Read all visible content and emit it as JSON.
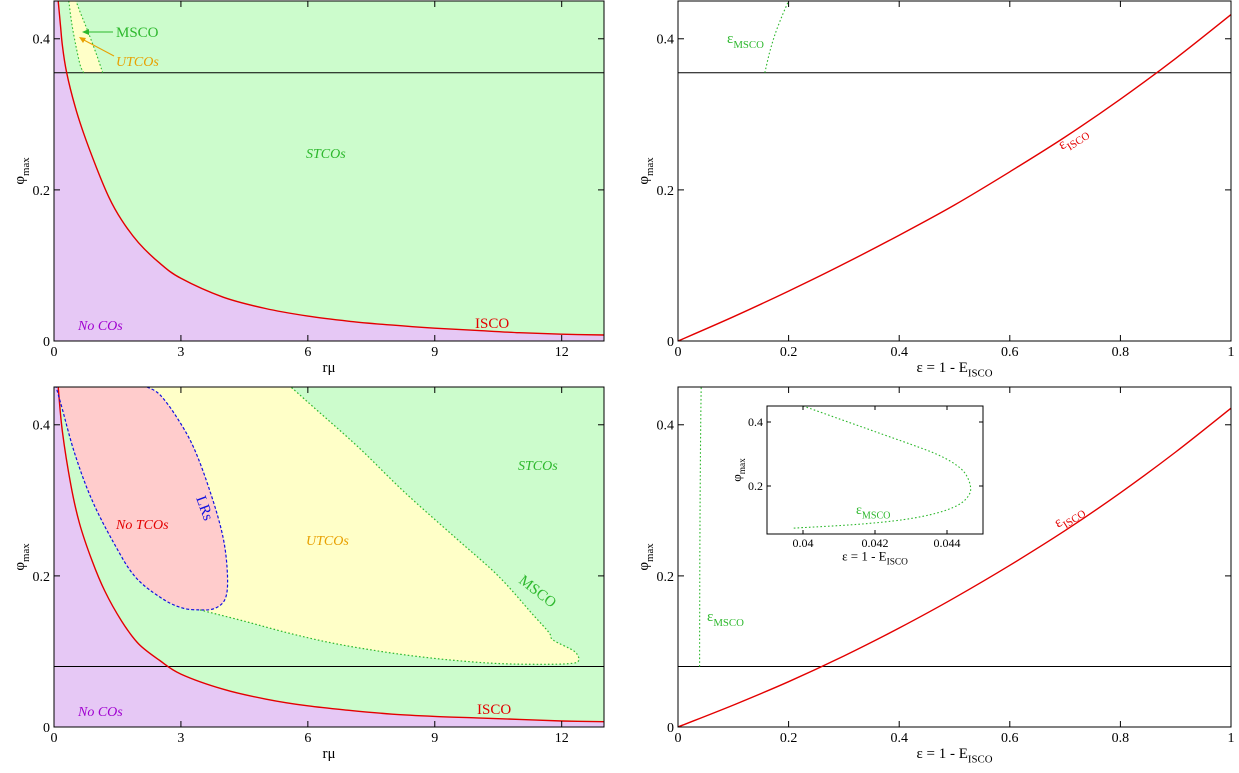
{
  "chart_data": [
    {
      "id": "top-left",
      "type": "area",
      "xlabel": "rμ",
      "ylabel": "φmax",
      "ylabel_main": "φ",
      "ylabel_sub": "max",
      "xlim": [
        0,
        13
      ],
      "ylim": [
        0,
        0.45
      ],
      "xticks": [
        0,
        3,
        6,
        9,
        12
      ],
      "yticks": [
        0,
        0.2,
        0.4
      ],
      "xtick_labels": [
        "0",
        "3",
        "6",
        "9",
        "12"
      ],
      "ytick_labels": [
        "0",
        "0.2",
        "0.4"
      ],
      "hline": 0.355,
      "regions": [
        {
          "label": "No COs",
          "color": "#e6c8f5"
        },
        {
          "label": "STCOs",
          "color": "#ccfccc"
        },
        {
          "label": "UTCOs",
          "color": "#ffffc8"
        }
      ],
      "curves": [
        {
          "name": "ISCO",
          "style": "solid",
          "color": "#e30000",
          "points": [
            [
              0.1,
              0.45
            ],
            [
              0.15,
              0.42
            ],
            [
              0.2,
              0.39
            ],
            [
              0.3,
              0.355
            ],
            [
              0.5,
              0.31
            ],
            [
              0.7,
              0.275
            ],
            [
              1.0,
              0.23
            ],
            [
              1.3,
              0.19
            ],
            [
              1.6,
              0.16
            ],
            [
              2.0,
              0.13
            ],
            [
              2.5,
              0.103
            ],
            [
              3.0,
              0.083
            ],
            [
              4.0,
              0.058
            ],
            [
              5.0,
              0.043
            ],
            [
              6.0,
              0.033
            ],
            [
              7.0,
              0.026
            ],
            [
              8.0,
              0.021
            ],
            [
              9.0,
              0.017
            ],
            [
              10.0,
              0.014
            ],
            [
              11.0,
              0.011
            ],
            [
              12.0,
              0.009
            ],
            [
              13.0,
              0.008
            ]
          ]
        },
        {
          "name": "MSCO",
          "style": "dotted",
          "color": "#2db82d",
          "points": [
            [
              1.15,
              0.355
            ],
            [
              1.0,
              0.38
            ],
            [
              0.8,
              0.41
            ],
            [
              0.62,
              0.435
            ],
            [
              0.52,
              0.45
            ]
          ]
        },
        {
          "name": "UTCO-left",
          "style": "dotted",
          "color": "#2db82d",
          "points": [
            [
              0.35,
              0.45
            ],
            [
              0.42,
              0.42
            ],
            [
              0.52,
              0.39
            ],
            [
              0.62,
              0.365
            ],
            [
              0.7,
              0.355
            ]
          ]
        }
      ],
      "labels": [
        "MSCO",
        "UTCOs",
        "STCOs",
        "No COs",
        "ISCO"
      ]
    },
    {
      "id": "top-right",
      "type": "line",
      "xlabel": "ε = 1 - EISCO",
      "xlabel_main": "ε = 1 - E",
      "xlabel_sub": "ISCO",
      "ylabel": "φmax",
      "ylabel_main": "φ",
      "ylabel_sub": "max",
      "xlim": [
        0,
        1
      ],
      "ylim": [
        0,
        0.45
      ],
      "xticks": [
        0,
        0.2,
        0.4,
        0.6,
        0.8,
        1
      ],
      "yticks": [
        0,
        0.2,
        0.4
      ],
      "xtick_labels": [
        "0",
        "0.2",
        "0.4",
        "0.6",
        "0.8",
        "1"
      ],
      "ytick_labels": [
        "0",
        "0.2",
        "0.4"
      ],
      "hline": 0.355,
      "series": [
        {
          "name": "εISCO",
          "label_main": "ε",
          "label_sub": "ISCO",
          "style": "solid",
          "color": "#e30000",
          "x": [
            0,
            0.1,
            0.2,
            0.3,
            0.4,
            0.5,
            0.6,
            0.7,
            0.8,
            0.9,
            1.0
          ],
          "y": [
            0,
            0.032,
            0.066,
            0.102,
            0.14,
            0.18,
            0.224,
            0.27,
            0.32,
            0.374,
            0.432
          ]
        },
        {
          "name": "εMSCO",
          "label_main": "ε",
          "label_sub": "MSCO",
          "style": "dotted",
          "color": "#2db82d",
          "x": [
            0.157,
            0.165,
            0.175,
            0.188,
            0.2
          ],
          "y": [
            0.355,
            0.38,
            0.405,
            0.43,
            0.45
          ]
        }
      ]
    },
    {
      "id": "bottom-left",
      "type": "area",
      "xlabel": "rμ",
      "ylabel": "φmax",
      "ylabel_main": "φ",
      "ylabel_sub": "max",
      "xlim": [
        0,
        13
      ],
      "ylim": [
        0,
        0.45
      ],
      "xticks": [
        0,
        3,
        6,
        9,
        12
      ],
      "yticks": [
        0,
        0.2,
        0.4
      ],
      "xtick_labels": [
        "0",
        "3",
        "6",
        "9",
        "12"
      ],
      "ytick_labels": [
        "0",
        "0.2",
        "0.4"
      ],
      "hline": 0.08,
      "regions": [
        {
          "label": "No COs",
          "color": "#e6c8f5"
        },
        {
          "label": "STCOs",
          "color": "#ccfccc"
        },
        {
          "label": "UTCOs",
          "color": "#ffffc8"
        },
        {
          "label": "No TCOs",
          "color": "#ffcccc"
        }
      ],
      "curves": [
        {
          "name": "ISCO",
          "style": "solid",
          "color": "#e30000",
          "points": [
            [
              0.1,
              0.45
            ],
            [
              0.2,
              0.39
            ],
            [
              0.4,
              0.32
            ],
            [
              0.6,
              0.27
            ],
            [
              0.9,
              0.22
            ],
            [
              1.2,
              0.18
            ],
            [
              1.6,
              0.14
            ],
            [
              2.0,
              0.11
            ],
            [
              2.5,
              0.088
            ],
            [
              3.0,
              0.07
            ],
            [
              4.0,
              0.05
            ],
            [
              5.0,
              0.037
            ],
            [
              6.0,
              0.028
            ],
            [
              7.0,
              0.022
            ],
            [
              8.0,
              0.017
            ],
            [
              9.0,
              0.014
            ],
            [
              10.0,
              0.012
            ],
            [
              11.0,
              0.01
            ],
            [
              12.0,
              0.008
            ],
            [
              13.0,
              0.007
            ]
          ]
        },
        {
          "name": "LRs",
          "style": "dashed",
          "color": "#1010e0",
          "points": [
            [
              2.2,
              0.45
            ],
            [
              2.5,
              0.44
            ],
            [
              2.9,
              0.41
            ],
            [
              3.3,
              0.37
            ],
            [
              3.7,
              0.31
            ],
            [
              4.0,
              0.25
            ],
            [
              4.1,
              0.2
            ],
            [
              4.05,
              0.17
            ],
            [
              3.8,
              0.157
            ],
            [
              3.45,
              0.155
            ],
            [
              3.0,
              0.158
            ],
            [
              2.5,
              0.172
            ],
            [
              1.9,
              0.2
            ],
            [
              1.4,
              0.245
            ],
            [
              0.9,
              0.3
            ],
            [
              0.5,
              0.36
            ],
            [
              0.2,
              0.42
            ],
            [
              0.05,
              0.45
            ]
          ]
        },
        {
          "name": "MSCO",
          "style": "dotted",
          "color": "#2db82d",
          "points": [
            [
              3.45,
              0.155
            ],
            [
              4.5,
              0.14
            ],
            [
              5.5,
              0.125
            ],
            [
              6.5,
              0.112
            ],
            [
              7.5,
              0.102
            ],
            [
              8.5,
              0.094
            ],
            [
              9.5,
              0.088
            ],
            [
              10.5,
              0.084
            ],
            [
              11.5,
              0.083
            ],
            [
              12.2,
              0.084
            ],
            [
              12.4,
              0.088
            ],
            [
              12.3,
              0.1
            ],
            [
              11.8,
              0.115
            ],
            [
              11.7,
              0.125
            ],
            [
              11.3,
              0.15
            ],
            [
              10.5,
              0.2
            ],
            [
              9.5,
              0.25
            ],
            [
              8.3,
              0.31
            ],
            [
              7.2,
              0.37
            ],
            [
              6.0,
              0.43
            ],
            [
              5.6,
              0.45
            ]
          ]
        }
      ],
      "labels": [
        "STCOs",
        "No TCOs",
        "LRs",
        "UTCOs",
        "MSCO",
        "No COs",
        "ISCO"
      ]
    },
    {
      "id": "bottom-right",
      "type": "line",
      "xlabel": "ε = 1 - EISCO",
      "xlabel_main": "ε = 1 - E",
      "xlabel_sub": "ISCO",
      "ylabel": "φmax",
      "ylabel_main": "φ",
      "ylabel_sub": "max",
      "xlim": [
        0,
        1
      ],
      "ylim": [
        0,
        0.45
      ],
      "xticks": [
        0,
        0.2,
        0.4,
        0.6,
        0.8,
        1
      ],
      "yticks": [
        0,
        0.2,
        0.4
      ],
      "xtick_labels": [
        "0",
        "0.2",
        "0.4",
        "0.6",
        "0.8",
        "1"
      ],
      "ytick_labels": [
        "0",
        "0.2",
        "0.4"
      ],
      "hline": 0.08,
      "series": [
        {
          "name": "εISCO",
          "label_main": "ε",
          "label_sub": "ISCO",
          "style": "solid",
          "color": "#e30000",
          "x": [
            0,
            0.1,
            0.2,
            0.3,
            0.4,
            0.5,
            0.6,
            0.7,
            0.8,
            0.9,
            1.0
          ],
          "y": [
            0,
            0.029,
            0.06,
            0.094,
            0.131,
            0.171,
            0.214,
            0.26,
            0.31,
            0.364,
            0.422
          ]
        },
        {
          "name": "εMSCO",
          "label_main": "ε",
          "label_sub": "MSCO",
          "style": "dotted",
          "color": "#2db82d",
          "x": [
            0.039,
            0.0392,
            0.0395,
            0.04,
            0.041,
            0.042
          ],
          "y": [
            0.08,
            0.15,
            0.22,
            0.3,
            0.4,
            0.45
          ]
        }
      ],
      "inset": {
        "xlabel": "ε = 1 - EISCO",
        "xlabel_main": "ε = 1 - E",
        "xlabel_sub": "ISCO",
        "ylabel": "φmax",
        "ylabel_main": "φ",
        "ylabel_sub": "max",
        "xlim": [
          0.039,
          0.045
        ],
        "ylim": [
          0.05,
          0.45
        ],
        "xticks": [
          0.04,
          0.042,
          0.044
        ],
        "yticks": [
          0.2,
          0.4
        ],
        "xtick_labels": [
          "0.04",
          "0.042",
          "0.044"
        ],
        "ytick_labels": [
          "0.2",
          "0.4"
        ],
        "series": [
          {
            "name": "εMSCO",
            "label_main": "ε",
            "label_sub": "MSCO",
            "style": "dotted",
            "color": "#2db82d",
            "x": [
              0.04,
              0.041,
              0.042,
              0.043,
              0.0437,
              0.0442,
              0.0445,
              0.04465,
              0.0446,
              0.0443,
              0.0437,
              0.0428,
              0.0415,
              0.04,
              0.0397
            ],
            "y": [
              0.45,
              0.41,
              0.37,
              0.33,
              0.3,
              0.27,
              0.24,
              0.2,
              0.17,
              0.14,
              0.115,
              0.095,
              0.08,
              0.07,
              0.068
            ]
          }
        ]
      }
    }
  ]
}
